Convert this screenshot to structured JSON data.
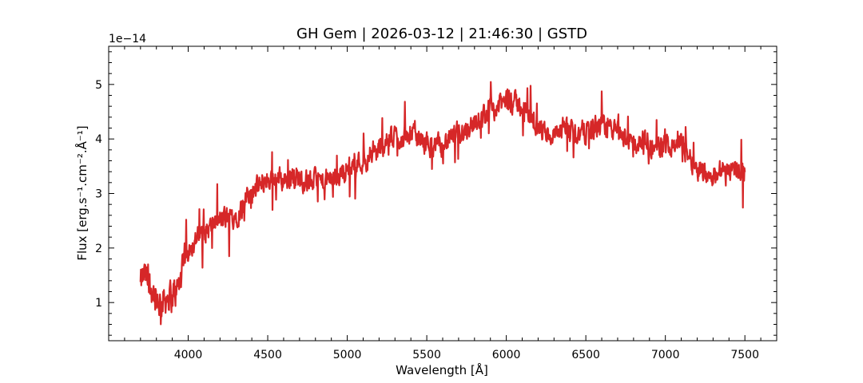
{
  "chart_data": {
    "type": "line",
    "title": "GH Gem | 2026-03-12 | 21:46:30 | GSTD",
    "xlabel": "Wavelength [Å]",
    "ylabel": "Flux [erg.s⁻¹.cm⁻².Å⁻¹]",
    "offset_text": "1e−14",
    "scale": 1e-14,
    "xlim": [
      3500,
      7700
    ],
    "ylim": [
      0.3,
      5.7
    ],
    "xticks": [
      4000,
      4500,
      5000,
      5500,
      6000,
      6500,
      7000,
      7500
    ],
    "xtick_labels": [
      "4000",
      "4500",
      "5000",
      "5500",
      "6000",
      "6500",
      "7000",
      "7500"
    ],
    "yticks": [
      1,
      2,
      3,
      4,
      5
    ],
    "ytick_labels": [
      "1",
      "2",
      "3",
      "4",
      "5"
    ],
    "minor_ticks": true,
    "grid": false,
    "series": [
      {
        "color": "#d62728",
        "x": [
          3700,
          3720,
          3740,
          3760,
          3780,
          3800,
          3820,
          3840,
          3860,
          3880,
          3900,
          3920,
          3940,
          3960,
          3980,
          4000,
          4050,
          4100,
          4150,
          4200,
          4250,
          4300,
          4350,
          4400,
          4450,
          4500,
          4550,
          4600,
          4650,
          4700,
          4750,
          4800,
          4850,
          4900,
          4950,
          5000,
          5050,
          5100,
          5150,
          5200,
          5250,
          5300,
          5350,
          5400,
          5450,
          5500,
          5550,
          5600,
          5650,
          5700,
          5750,
          5800,
          5850,
          5900,
          5950,
          6000,
          6050,
          6100,
          6150,
          6200,
          6250,
          6300,
          6350,
          6400,
          6450,
          6500,
          6550,
          6600,
          6650,
          6700,
          6750,
          6800,
          6850,
          6900,
          6950,
          7000,
          7050,
          7100,
          7150,
          7200,
          7250,
          7300,
          7350,
          7400,
          7450,
          7500
        ],
        "y": [
          1.3,
          1.5,
          1.4,
          1.3,
          1.2,
          1.1,
          1.0,
          1.05,
          1.1,
          1.15,
          1.1,
          1.2,
          1.3,
          1.5,
          1.8,
          2.0,
          2.15,
          2.3,
          2.4,
          2.5,
          2.55,
          2.6,
          2.8,
          3.0,
          3.15,
          3.25,
          3.3,
          3.25,
          3.3,
          3.3,
          3.2,
          3.25,
          3.2,
          3.25,
          3.35,
          3.45,
          3.55,
          3.6,
          3.7,
          3.8,
          3.95,
          4.05,
          4.0,
          4.1,
          4.0,
          3.9,
          3.85,
          3.9,
          4.0,
          4.1,
          4.2,
          4.3,
          4.4,
          4.55,
          4.6,
          4.7,
          4.65,
          4.6,
          4.4,
          4.2,
          4.1,
          4.05,
          4.1,
          4.15,
          4.1,
          4.15,
          4.2,
          4.25,
          4.2,
          4.1,
          4.0,
          3.95,
          3.9,
          3.85,
          3.8,
          3.9,
          3.95,
          3.9,
          3.7,
          3.5,
          3.4,
          3.35,
          3.4,
          3.45,
          3.5,
          3.4
        ]
      }
    ]
  }
}
